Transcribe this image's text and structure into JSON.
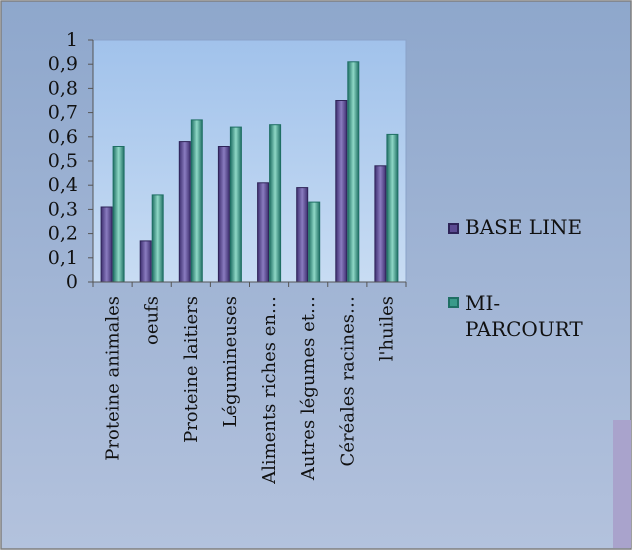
{
  "chart_data": {
    "type": "bar",
    "categories": [
      "Proteine animales",
      "oeufs",
      "Proteine laitiers",
      "Légumineuses",
      "Aliments riches en…",
      "Autres légumes et…",
      "Céréales racines…",
      "l'huiles"
    ],
    "series": [
      {
        "name": "BASE LINE",
        "values": [
          0.31,
          0.17,
          0.58,
          0.56,
          0.41,
          0.39,
          0.75,
          0.48
        ],
        "color": "#5b4a92"
      },
      {
        "name": "MI-\nPARCOURT",
        "values": [
          0.56,
          0.36,
          0.67,
          0.64,
          0.65,
          0.33,
          0.91,
          0.61
        ],
        "color": "#3a9a8a"
      }
    ],
    "ylim": [
      0,
      1
    ],
    "yticks": [
      "0",
      "0,1",
      "0,2",
      "0,3",
      "0,4",
      "0,5",
      "0,6",
      "0,7",
      "0,8",
      "0,9",
      "1"
    ],
    "grid": false,
    "legend_position": "right",
    "background": "#9ab0d0",
    "plot_background": "#a9c8ec"
  }
}
